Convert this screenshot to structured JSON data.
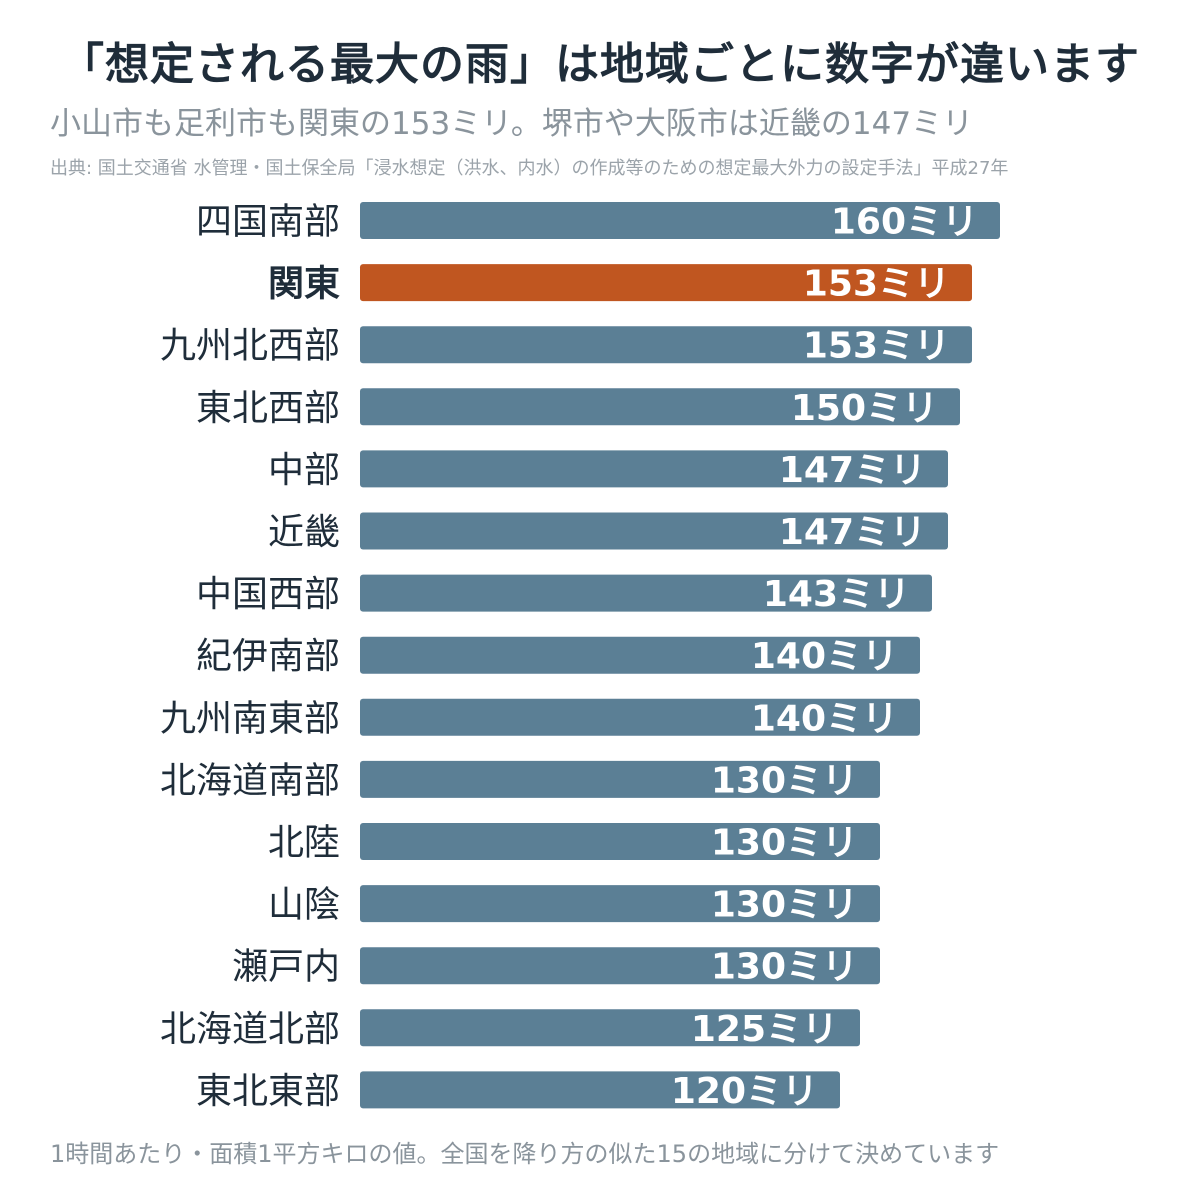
{
  "title": "「想定される最大の雨」は地域ごとに数字が違います",
  "subtitle": "小山市も足利市も関東の153ミリ。堺市や大阪市は近畿の147ミリ",
  "source": "出典: 国土交通省 水管理・国土保全局「浸水想定（洪水、内水）の作成等のための想定最大外力の設定手法」平成27年",
  "footnote": "1時間あたり・面積1平方キロの値。全国を降り方の似た15の地域に分けて決めています",
  "colors": {
    "bar": "#5b7f95",
    "highlight": "#c05620",
    "text": "#1f2d3a",
    "muted": "#8a949c"
  },
  "chart_data": {
    "type": "bar",
    "orientation": "horizontal",
    "unit": "ミリ",
    "categories": [
      "四国南部",
      "関東",
      "九州北西部",
      "東北西部",
      "中部",
      "近畿",
      "中国西部",
      "紀伊南部",
      "九州南東部",
      "北海道南部",
      "北陸",
      "山陰",
      "瀬戸内",
      "北海道北部",
      "東北東部"
    ],
    "values": [
      160,
      153,
      153,
      150,
      147,
      147,
      143,
      140,
      140,
      130,
      130,
      130,
      130,
      125,
      120
    ],
    "highlight": "関東",
    "xlim": [
      0,
      160
    ],
    "grid": false
  }
}
